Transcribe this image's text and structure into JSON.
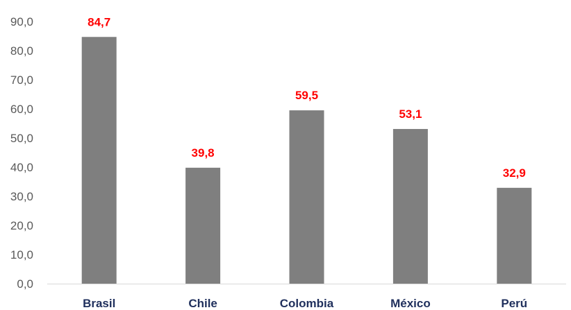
{
  "chart_data": {
    "type": "bar",
    "categories": [
      "Brasil",
      "Chile",
      "Colombia",
      "México",
      "Perú"
    ],
    "values": [
      84.7,
      39.8,
      59.5,
      53.1,
      32.9
    ],
    "value_labels": [
      "84,7",
      "39,8",
      "59,5",
      "53,1",
      "32,9"
    ],
    "title": "",
    "xlabel": "",
    "ylabel": "",
    "ylim": [
      0,
      90
    ],
    "yticks": [
      0,
      10,
      20,
      30,
      40,
      50,
      60,
      70,
      80,
      90
    ],
    "ytick_labels": [
      "0,0",
      "10,0",
      "20,0",
      "30,0",
      "40,0",
      "50,0",
      "60,0",
      "70,0",
      "80,0",
      "90,0"
    ],
    "grid": false,
    "legend": "none",
    "colors": {
      "bar": "#7f7f7f",
      "data_label": "#ff0000",
      "category_label": "#1f2f5c",
      "axis_line": "#d9d9d9",
      "tick_label": "#595959"
    }
  }
}
